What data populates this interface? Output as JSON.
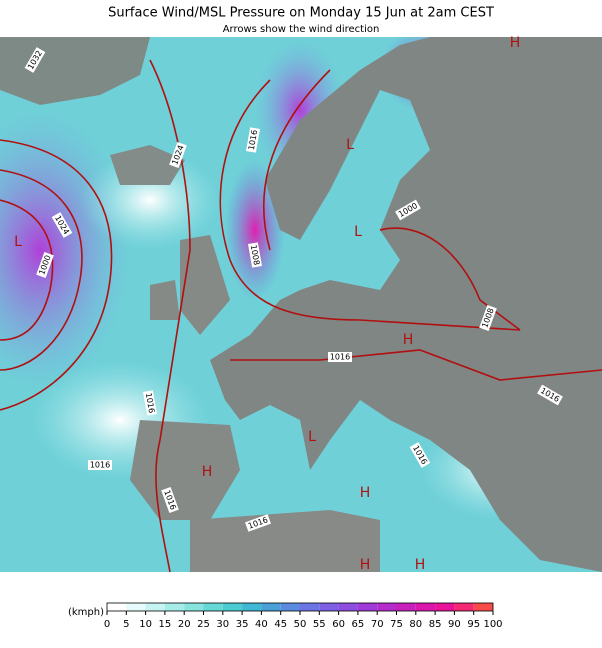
{
  "header": {
    "title": "Surface Wind/MSL Pressure on Monday 15 Jun at 2am CEST",
    "subtitle": "Arrows show the wind direction"
  },
  "isobar_labels": [
    "1032",
    "1024",
    "1016",
    "1024",
    "1000",
    "1008",
    "1000",
    "1008",
    "1016",
    "1016",
    "1016",
    "1016",
    "1016",
    "1016",
    "1016"
  ],
  "pressure_centers": [
    "L",
    "L",
    "L",
    "L",
    "H",
    "H",
    "H",
    "H",
    "H",
    "H"
  ],
  "legend": {
    "unit": "(kmph)",
    "ticks": [
      0,
      5,
      10,
      15,
      20,
      25,
      30,
      35,
      40,
      45,
      50,
      55,
      60,
      65,
      70,
      75,
      80,
      85,
      90,
      95,
      100
    ],
    "colors": [
      "#ffffff",
      "#e6fbfb",
      "#c6f4f2",
      "#a6ece8",
      "#86e3dd",
      "#66d8d6",
      "#4ccbd2",
      "#3fb8d4",
      "#4aa1d8",
      "#5a8be0",
      "#6b75e4",
      "#7d60e4",
      "#8e4ce0",
      "#a03ad8",
      "#b52ccd",
      "#c91fbf",
      "#dc16ad",
      "#ea1298",
      "#f32a72",
      "#f84a4a"
    ]
  }
}
